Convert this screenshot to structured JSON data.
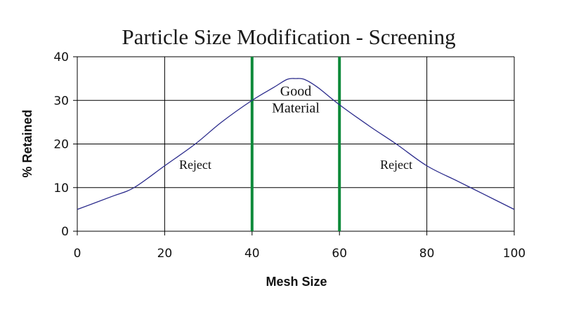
{
  "chart_data": {
    "type": "line",
    "title": "Particle Size Modification - Screening",
    "xlabel": "Mesh Size",
    "ylabel": "% Retained",
    "xlim": [
      0,
      100
    ],
    "ylim": [
      0,
      40
    ],
    "x_ticks": [
      0,
      20,
      40,
      60,
      80,
      100
    ],
    "y_ticks": [
      0,
      10,
      20,
      30,
      40
    ],
    "x_tick_labels": [
      "0",
      "20",
      "40",
      "60",
      "80",
      "100"
    ],
    "y_tick_labels": [
      "0",
      "10",
      "20",
      "30",
      "40"
    ],
    "grid": true,
    "series": [
      {
        "x": [
          0,
          8,
          13,
          20,
          27,
          33,
          40,
          45,
          48,
          50,
          52,
          55,
          60,
          67,
          73,
          80,
          87,
          93,
          100
        ],
        "y": [
          5,
          8,
          10,
          15,
          20,
          25,
          30,
          33,
          34.8,
          35,
          34.8,
          33,
          29,
          24,
          20,
          15,
          11.5,
          8.5,
          5
        ],
        "color": "#2b2b8c"
      }
    ],
    "vlines": [
      {
        "x": 40,
        "color": "#0e8a3a"
      },
      {
        "x": 60,
        "color": "#0e8a3a"
      }
    ],
    "annotations": [
      {
        "text": "Reject",
        "x": 27,
        "y": 14.3
      },
      {
        "text": "Good",
        "x": 50,
        "y": 31.1
      },
      {
        "text": "Material",
        "x": 50,
        "y": 27.2
      },
      {
        "text": "Reject",
        "x": 73,
        "y": 14.3
      }
    ]
  }
}
